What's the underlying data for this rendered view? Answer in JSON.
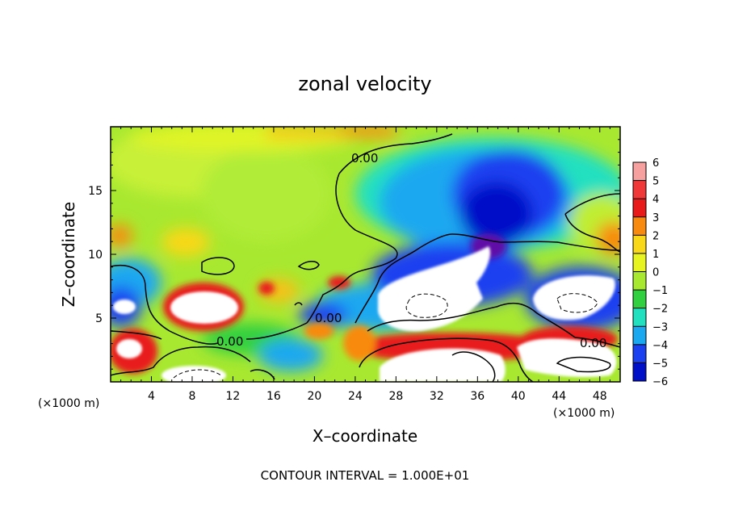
{
  "chart_data": {
    "type": "heatmap",
    "title": "zonal velocity",
    "xlabel": "X–coordinate",
    "ylabel": "Z–coordinate",
    "x_unit_left": "(×1000 m)",
    "x_unit_right": "(×1000 m)",
    "xlim": [
      0,
      50
    ],
    "ylim": [
      0,
      20
    ],
    "x_ticks": [
      4,
      8,
      12,
      16,
      20,
      24,
      28,
      32,
      36,
      40,
      44,
      48
    ],
    "y_ticks": [
      5,
      10,
      15
    ],
    "colorbar": {
      "levels": [
        6,
        5,
        4,
        3,
        2,
        1,
        0,
        -1,
        -2,
        -3,
        -4,
        -5,
        -6
      ],
      "level_labels": [
        "6",
        "5",
        "4",
        "3",
        "2",
        "1",
        "0",
        "−1",
        "−2",
        "−3",
        "−4",
        "−5",
        "−6"
      ],
      "colors_high_to_low": [
        "#f7a0a0",
        "#f03838",
        "#e81a1a",
        "#f88a10",
        "#f8d818",
        "#e8f420",
        "#a8e830",
        "#30d040",
        "#20e0c0",
        "#1aa8f0",
        "#1a40f0",
        "#0010c8",
        "#6010a8"
      ],
      "saturated_above_color": "#ffffff"
    },
    "contour_labels": [
      "0.00",
      "0.00",
      "0.00",
      "0.00"
    ],
    "contour_interval_text": "CONTOUR INTERVAL = 1.000E+01"
  }
}
